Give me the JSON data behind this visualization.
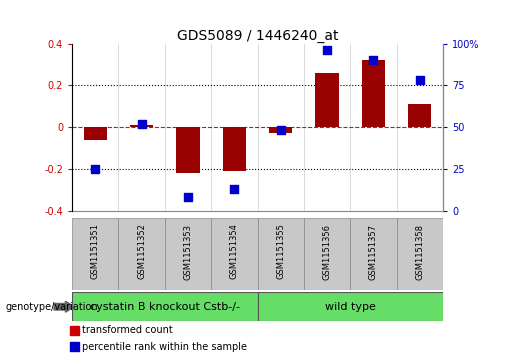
{
  "title": "GDS5089 / 1446240_at",
  "samples": [
    "GSM1151351",
    "GSM1151352",
    "GSM1151353",
    "GSM1151354",
    "GSM1151355",
    "GSM1151356",
    "GSM1151357",
    "GSM1151358"
  ],
  "bar_values": [
    -0.06,
    0.01,
    -0.22,
    -0.21,
    -0.03,
    0.26,
    0.32,
    0.11
  ],
  "dot_values": [
    25,
    52,
    8,
    13,
    48,
    96,
    90,
    78
  ],
  "groups": [
    {
      "label": "cystatin B knockout Cstb-/-",
      "start": 0,
      "end": 4,
      "color": "#66dd66"
    },
    {
      "label": "wild type",
      "start": 4,
      "end": 8,
      "color": "#66dd66"
    }
  ],
  "ylim": [
    -0.4,
    0.4
  ],
  "y2lim": [
    0,
    100
  ],
  "yticks": [
    -0.4,
    -0.2,
    0.0,
    0.2,
    0.4
  ],
  "y2ticks": [
    0,
    25,
    50,
    75,
    100
  ],
  "ytick_labels": [
    "-0.4",
    "-0.2",
    "0",
    "0.2",
    "0.4"
  ],
  "y2tick_labels": [
    "0",
    "25",
    "50",
    "75",
    "100%"
  ],
  "hlines": [
    0.2,
    0.0,
    -0.2
  ],
  "hline_styles": [
    "dotted",
    "dashed",
    "dotted"
  ],
  "hline_colors": [
    "black",
    "red",
    "black"
  ],
  "bar_color": "#990000",
  "dot_color": "#0000cc",
  "bar_width": 0.5,
  "dot_size": 30,
  "dot_marker": "s",
  "ylabel_left_color": "#cc0000",
  "ylabel_right_color": "#0000cc",
  "genotype_label": "genotype/variation",
  "legend_items": [
    {
      "label": "transformed count",
      "color": "#cc0000"
    },
    {
      "label": "percentile rank within the sample",
      "color": "#0000cc"
    }
  ],
  "cell_bg_color": "#c8c8c8",
  "cell_border_color": "#888888",
  "title_fontsize": 10,
  "tick_fontsize": 7,
  "sample_fontsize": 6,
  "group_fontsize": 8
}
